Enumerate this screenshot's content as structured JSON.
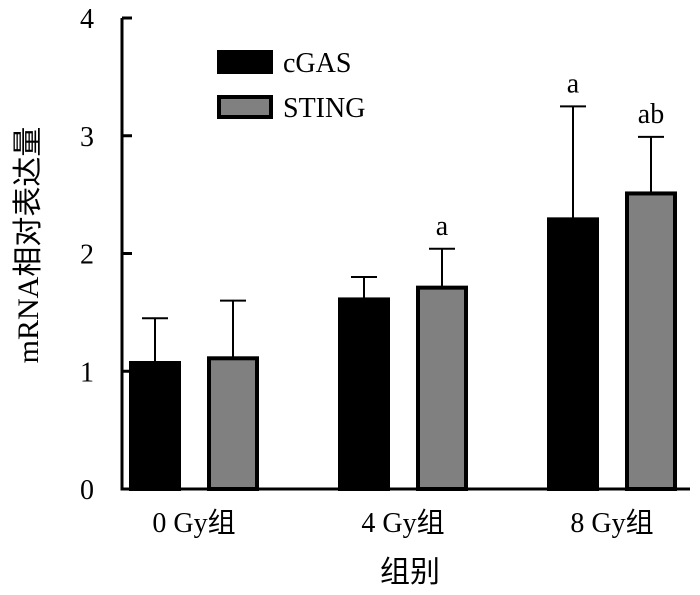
{
  "chart_data": {
    "type": "bar",
    "title": "",
    "xlabel": "组别",
    "ylabel": "mRNA相对表达量",
    "ylim": [
      0,
      4
    ],
    "yticks": [
      0,
      1,
      2,
      3,
      4
    ],
    "categories": [
      "0 Gy组",
      "4 Gy组",
      "8 Gy组"
    ],
    "series": [
      {
        "name": "cGAS",
        "color": "#000000",
        "values": [
          1.07,
          1.61,
          2.29
        ],
        "errors": [
          0.38,
          0.19,
          0.96
        ],
        "labels": [
          "",
          "",
          "a"
        ]
      },
      {
        "name": "STING",
        "color": "#808080",
        "values": [
          1.11,
          1.71,
          2.51
        ],
        "errors": [
          0.49,
          0.33,
          0.48
        ],
        "labels": [
          "",
          "a",
          "ab"
        ]
      }
    ],
    "legend": "top-left",
    "grid": false
  }
}
